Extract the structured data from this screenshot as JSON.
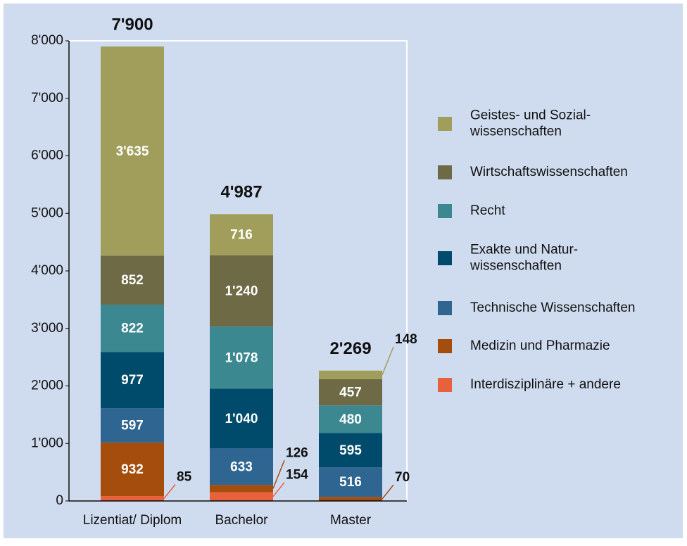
{
  "chart_data": {
    "type": "stacked_bar",
    "categories": [
      "Lizentiat/ Diplom",
      "Bachelor",
      "Master"
    ],
    "totals": [
      7900,
      4987,
      2269
    ],
    "total_labels": [
      "7'900",
      "4'987",
      "2'269"
    ],
    "series": [
      {
        "name": "Interdisziplinäre + andere",
        "color": "#e8613d",
        "values": [
          85,
          154,
          null
        ],
        "value_labels": [
          "85",
          "154",
          null
        ]
      },
      {
        "name": "Medizin und Pharmazie",
        "color": "#a54d0c",
        "values": [
          932,
          126,
          70
        ],
        "value_labels": [
          "932",
          "126",
          "70"
        ]
      },
      {
        "name": "Technische Wissenschaften",
        "color": "#2f6591",
        "values": [
          597,
          633,
          516
        ],
        "value_labels": [
          "597",
          "633",
          "516"
        ]
      },
      {
        "name": "Exakte und Natur-\nwissenschaften",
        "color": "#004a6b",
        "values": [
          977,
          1040,
          595
        ],
        "value_labels": [
          "977",
          "1'040",
          "595"
        ]
      },
      {
        "name": "Recht",
        "color": "#3c8891",
        "values": [
          822,
          1078,
          480
        ],
        "value_labels": [
          "822",
          "1'078",
          "480"
        ]
      },
      {
        "name": "Wirtschaftswissenschaften",
        "color": "#6e6a45",
        "values": [
          852,
          1240,
          457
        ],
        "value_labels": [
          "852",
          "1'240",
          "457"
        ]
      },
      {
        "name": "Geistes- und Sozial-\nwissenschaften",
        "color": "#a09e5a",
        "values": [
          3635,
          716,
          148
        ],
        "value_labels": [
          "3'635",
          "716",
          "148"
        ]
      }
    ],
    "ylim": [
      0,
      8000
    ],
    "yticks": [
      0,
      {
        "value": 1000,
        "label": "1'000"
      },
      {
        "value": 2000,
        "label": "2'000"
      },
      {
        "value": 3000,
        "label": "3'000"
      },
      {
        "value": 4000,
        "label": "4'000"
      },
      {
        "value": 5000,
        "label": "5'000"
      },
      {
        "value": 6000,
        "label": "6'000"
      },
      {
        "value": 7000,
        "label": "7'000"
      },
      {
        "value": 8000,
        "label": "8'000"
      }
    ]
  }
}
